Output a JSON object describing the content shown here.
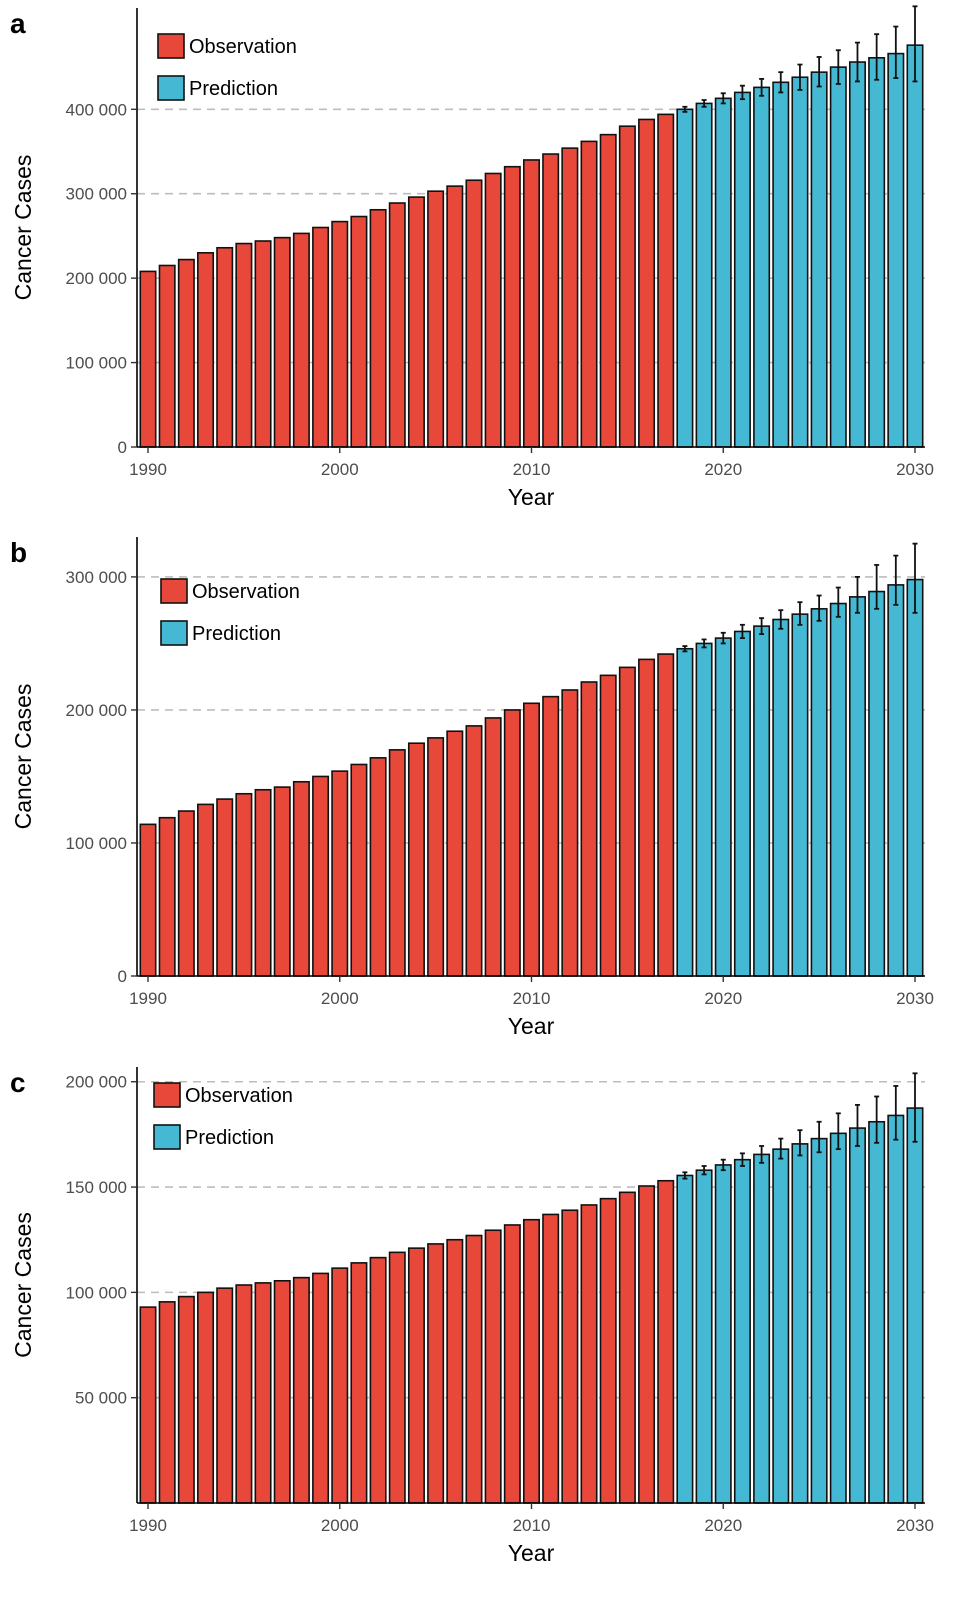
{
  "colors": {
    "observation": "#e8483a",
    "prediction": "#45b9d4",
    "grid": "#bdbdbd",
    "axis": "#000000"
  },
  "chart_data": [
    {
      "panel": "a",
      "type": "bar",
      "xlabel": "Year",
      "ylabel": "Cancer Cases",
      "ylim": [
        0,
        520000
      ],
      "yticks": [
        0,
        100000,
        200000,
        300000,
        400000
      ],
      "ytick_labels": [
        "0",
        "100 000",
        "200 000",
        "300 000",
        "400 000"
      ],
      "xticks": [
        1990,
        2000,
        2010,
        2020,
        2030
      ],
      "xtick_labels": [
        "1990",
        "2000",
        "2010",
        "2020",
        "2030"
      ],
      "grid": "horizontal-dashed",
      "legend": {
        "placement": "top-left",
        "entries": [
          "Observation",
          "Prediction"
        ]
      },
      "observation": {
        "name": "Observation",
        "x": [
          1990,
          1991,
          1992,
          1993,
          1994,
          1995,
          1996,
          1997,
          1998,
          1999,
          2000,
          2001,
          2002,
          2003,
          2004,
          2005,
          2006,
          2007,
          2008,
          2009,
          2010,
          2011,
          2012,
          2013,
          2014,
          2015,
          2016,
          2017
        ],
        "values": [
          208000,
          215000,
          222000,
          230000,
          236000,
          241000,
          244000,
          248000,
          253000,
          260000,
          267000,
          273000,
          281000,
          289000,
          296000,
          303000,
          309000,
          316000,
          324000,
          332000,
          340000,
          347000,
          354000,
          362000,
          370000,
          380000,
          388000,
          394000
        ]
      },
      "prediction": {
        "name": "Prediction",
        "x": [
          2018,
          2019,
          2020,
          2021,
          2022,
          2023,
          2024,
          2025,
          2026,
          2027,
          2028,
          2029,
          2030
        ],
        "values": [
          400000,
          407000,
          413000,
          420000,
          426000,
          432000,
          438000,
          444000,
          450000,
          456000,
          461000,
          466000,
          476000
        ],
        "lower": [
          397000,
          403000,
          407000,
          412000,
          416000,
          420000,
          423000,
          427000,
          430000,
          433000,
          435000,
          437000,
          433000
        ],
        "upper": [
          403000,
          411000,
          419000,
          428000,
          436000,
          444000,
          453000,
          462000,
          470000,
          479000,
          489000,
          498000,
          522000
        ]
      }
    },
    {
      "panel": "b",
      "type": "bar",
      "xlabel": "Year",
      "ylabel": "Cancer Cases",
      "ylim": [
        0,
        330000
      ],
      "yticks": [
        0,
        100000,
        200000,
        300000
      ],
      "ytick_labels": [
        "0",
        "100 000",
        "200 000",
        "300 000"
      ],
      "xticks": [
        1990,
        2000,
        2010,
        2020,
        2030
      ],
      "xtick_labels": [
        "1990",
        "2000",
        "2010",
        "2020",
        "2030"
      ],
      "grid": "horizontal-dashed",
      "legend": {
        "placement": "top-left",
        "entries": [
          "Observation",
          "Prediction"
        ]
      },
      "observation": {
        "name": "Observation",
        "x": [
          1990,
          1991,
          1992,
          1993,
          1994,
          1995,
          1996,
          1997,
          1998,
          1999,
          2000,
          2001,
          2002,
          2003,
          2004,
          2005,
          2006,
          2007,
          2008,
          2009,
          2010,
          2011,
          2012,
          2013,
          2014,
          2015,
          2016,
          2017
        ],
        "values": [
          114000,
          119000,
          124000,
          129000,
          133000,
          137000,
          140000,
          142000,
          146000,
          150000,
          154000,
          159000,
          164000,
          170000,
          175000,
          179000,
          184000,
          188000,
          194000,
          200000,
          205000,
          210000,
          215000,
          221000,
          226000,
          232000,
          238000,
          242000
        ]
      },
      "prediction": {
        "name": "Prediction",
        "x": [
          2018,
          2019,
          2020,
          2021,
          2022,
          2023,
          2024,
          2025,
          2026,
          2027,
          2028,
          2029,
          2030
        ],
        "values": [
          246000,
          250000,
          254000,
          259000,
          263000,
          268000,
          272000,
          276000,
          280000,
          285000,
          289000,
          294000,
          298000
        ],
        "lower": [
          244000,
          247000,
          250000,
          254000,
          257000,
          261000,
          264000,
          267000,
          270000,
          273000,
          276000,
          279000,
          273000
        ],
        "upper": [
          248000,
          253000,
          258000,
          264000,
          269000,
          275000,
          281000,
          286000,
          292000,
          300000,
          309000,
          316000,
          325000
        ]
      }
    },
    {
      "panel": "c",
      "type": "bar",
      "xlabel": "Year",
      "ylabel": "Cancer Cases",
      "ylim": [
        0,
        207000
      ],
      "yticks": [
        50000,
        100000,
        150000,
        200000
      ],
      "ytick_labels": [
        "50 000",
        "100 000",
        "150 000",
        "200 000"
      ],
      "xticks": [
        1990,
        2000,
        2010,
        2020,
        2030
      ],
      "xtick_labels": [
        "1990",
        "2000",
        "2010",
        "2020",
        "2030"
      ],
      "grid": "horizontal-dashed",
      "legend": {
        "placement": "top-left",
        "entries": [
          "Observation",
          "Prediction"
        ]
      },
      "observation": {
        "name": "Observation",
        "x": [
          1990,
          1991,
          1992,
          1993,
          1994,
          1995,
          1996,
          1997,
          1998,
          1999,
          2000,
          2001,
          2002,
          2003,
          2004,
          2005,
          2006,
          2007,
          2008,
          2009,
          2010,
          2011,
          2012,
          2013,
          2014,
          2015,
          2016,
          2017
        ],
        "values": [
          93000,
          95500,
          98000,
          100000,
          102000,
          103500,
          104500,
          105500,
          107000,
          109000,
          111500,
          114000,
          116500,
          119000,
          121000,
          123000,
          125000,
          127000,
          129500,
          132000,
          134500,
          137000,
          139000,
          141500,
          144500,
          147500,
          150500,
          153000
        ]
      },
      "prediction": {
        "name": "Prediction",
        "x": [
          2018,
          2019,
          2020,
          2021,
          2022,
          2023,
          2024,
          2025,
          2026,
          2027,
          2028,
          2029,
          2030
        ],
        "values": [
          155500,
          158000,
          160500,
          163000,
          165500,
          168000,
          170500,
          173000,
          175500,
          178000,
          181000,
          184000,
          187500
        ],
        "lower": [
          154000,
          156000,
          158000,
          160000,
          161500,
          163500,
          165000,
          166500,
          168000,
          169500,
          171000,
          172500,
          171500
        ],
        "upper": [
          157000,
          160000,
          163000,
          166000,
          169500,
          173000,
          177000,
          181000,
          185000,
          189000,
          193000,
          198000,
          204000
        ]
      }
    }
  ]
}
